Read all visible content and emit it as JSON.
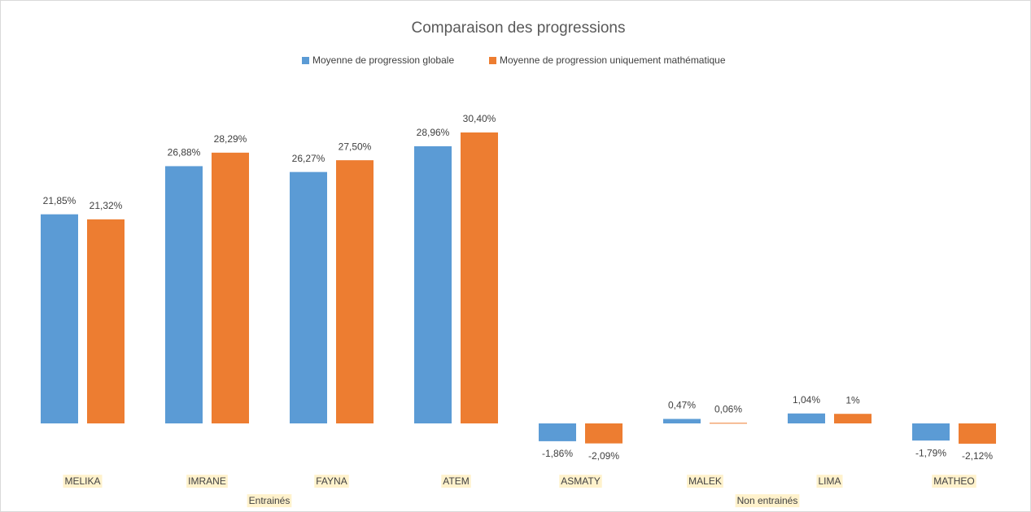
{
  "chart_data": {
    "type": "bar",
    "title": "Comparaison des progressions",
    "categories": [
      "MELIKA",
      "IMRANE",
      "FAYNA",
      "ATEM",
      "ASMATY",
      "MALEK",
      "LIMA",
      "MATHEO"
    ],
    "category_groups": [
      "Entrainés",
      "Entrainés",
      "Entrainés",
      "Entrainés",
      "Non entrainés",
      "Non entrainés",
      "Non entrainés",
      "Non entrainés"
    ],
    "series": [
      {
        "name": "Moyenne de progression globale",
        "color": "#5b9bd5",
        "values": [
          21.85,
          26.88,
          26.27,
          28.96,
          -1.86,
          0.47,
          1.04,
          -1.79
        ],
        "value_labels": [
          "21,85%",
          "26,88%",
          "26,27%",
          "28,96%",
          "-1,86%",
          "0,47%",
          "1,04%",
          "-1,79%"
        ]
      },
      {
        "name": "Moyenne de progression uniquement mathématique",
        "color": "#ed7d31",
        "values": [
          21.32,
          28.29,
          27.5,
          30.4,
          -2.09,
          0.06,
          1,
          -2.12
        ],
        "value_labels": [
          "21,32%",
          "28,29%",
          "27,50%",
          "30,40%",
          "-2,09%",
          "0,06%",
          "1%",
          "-2,12%"
        ]
      }
    ],
    "legend": "top"
  }
}
